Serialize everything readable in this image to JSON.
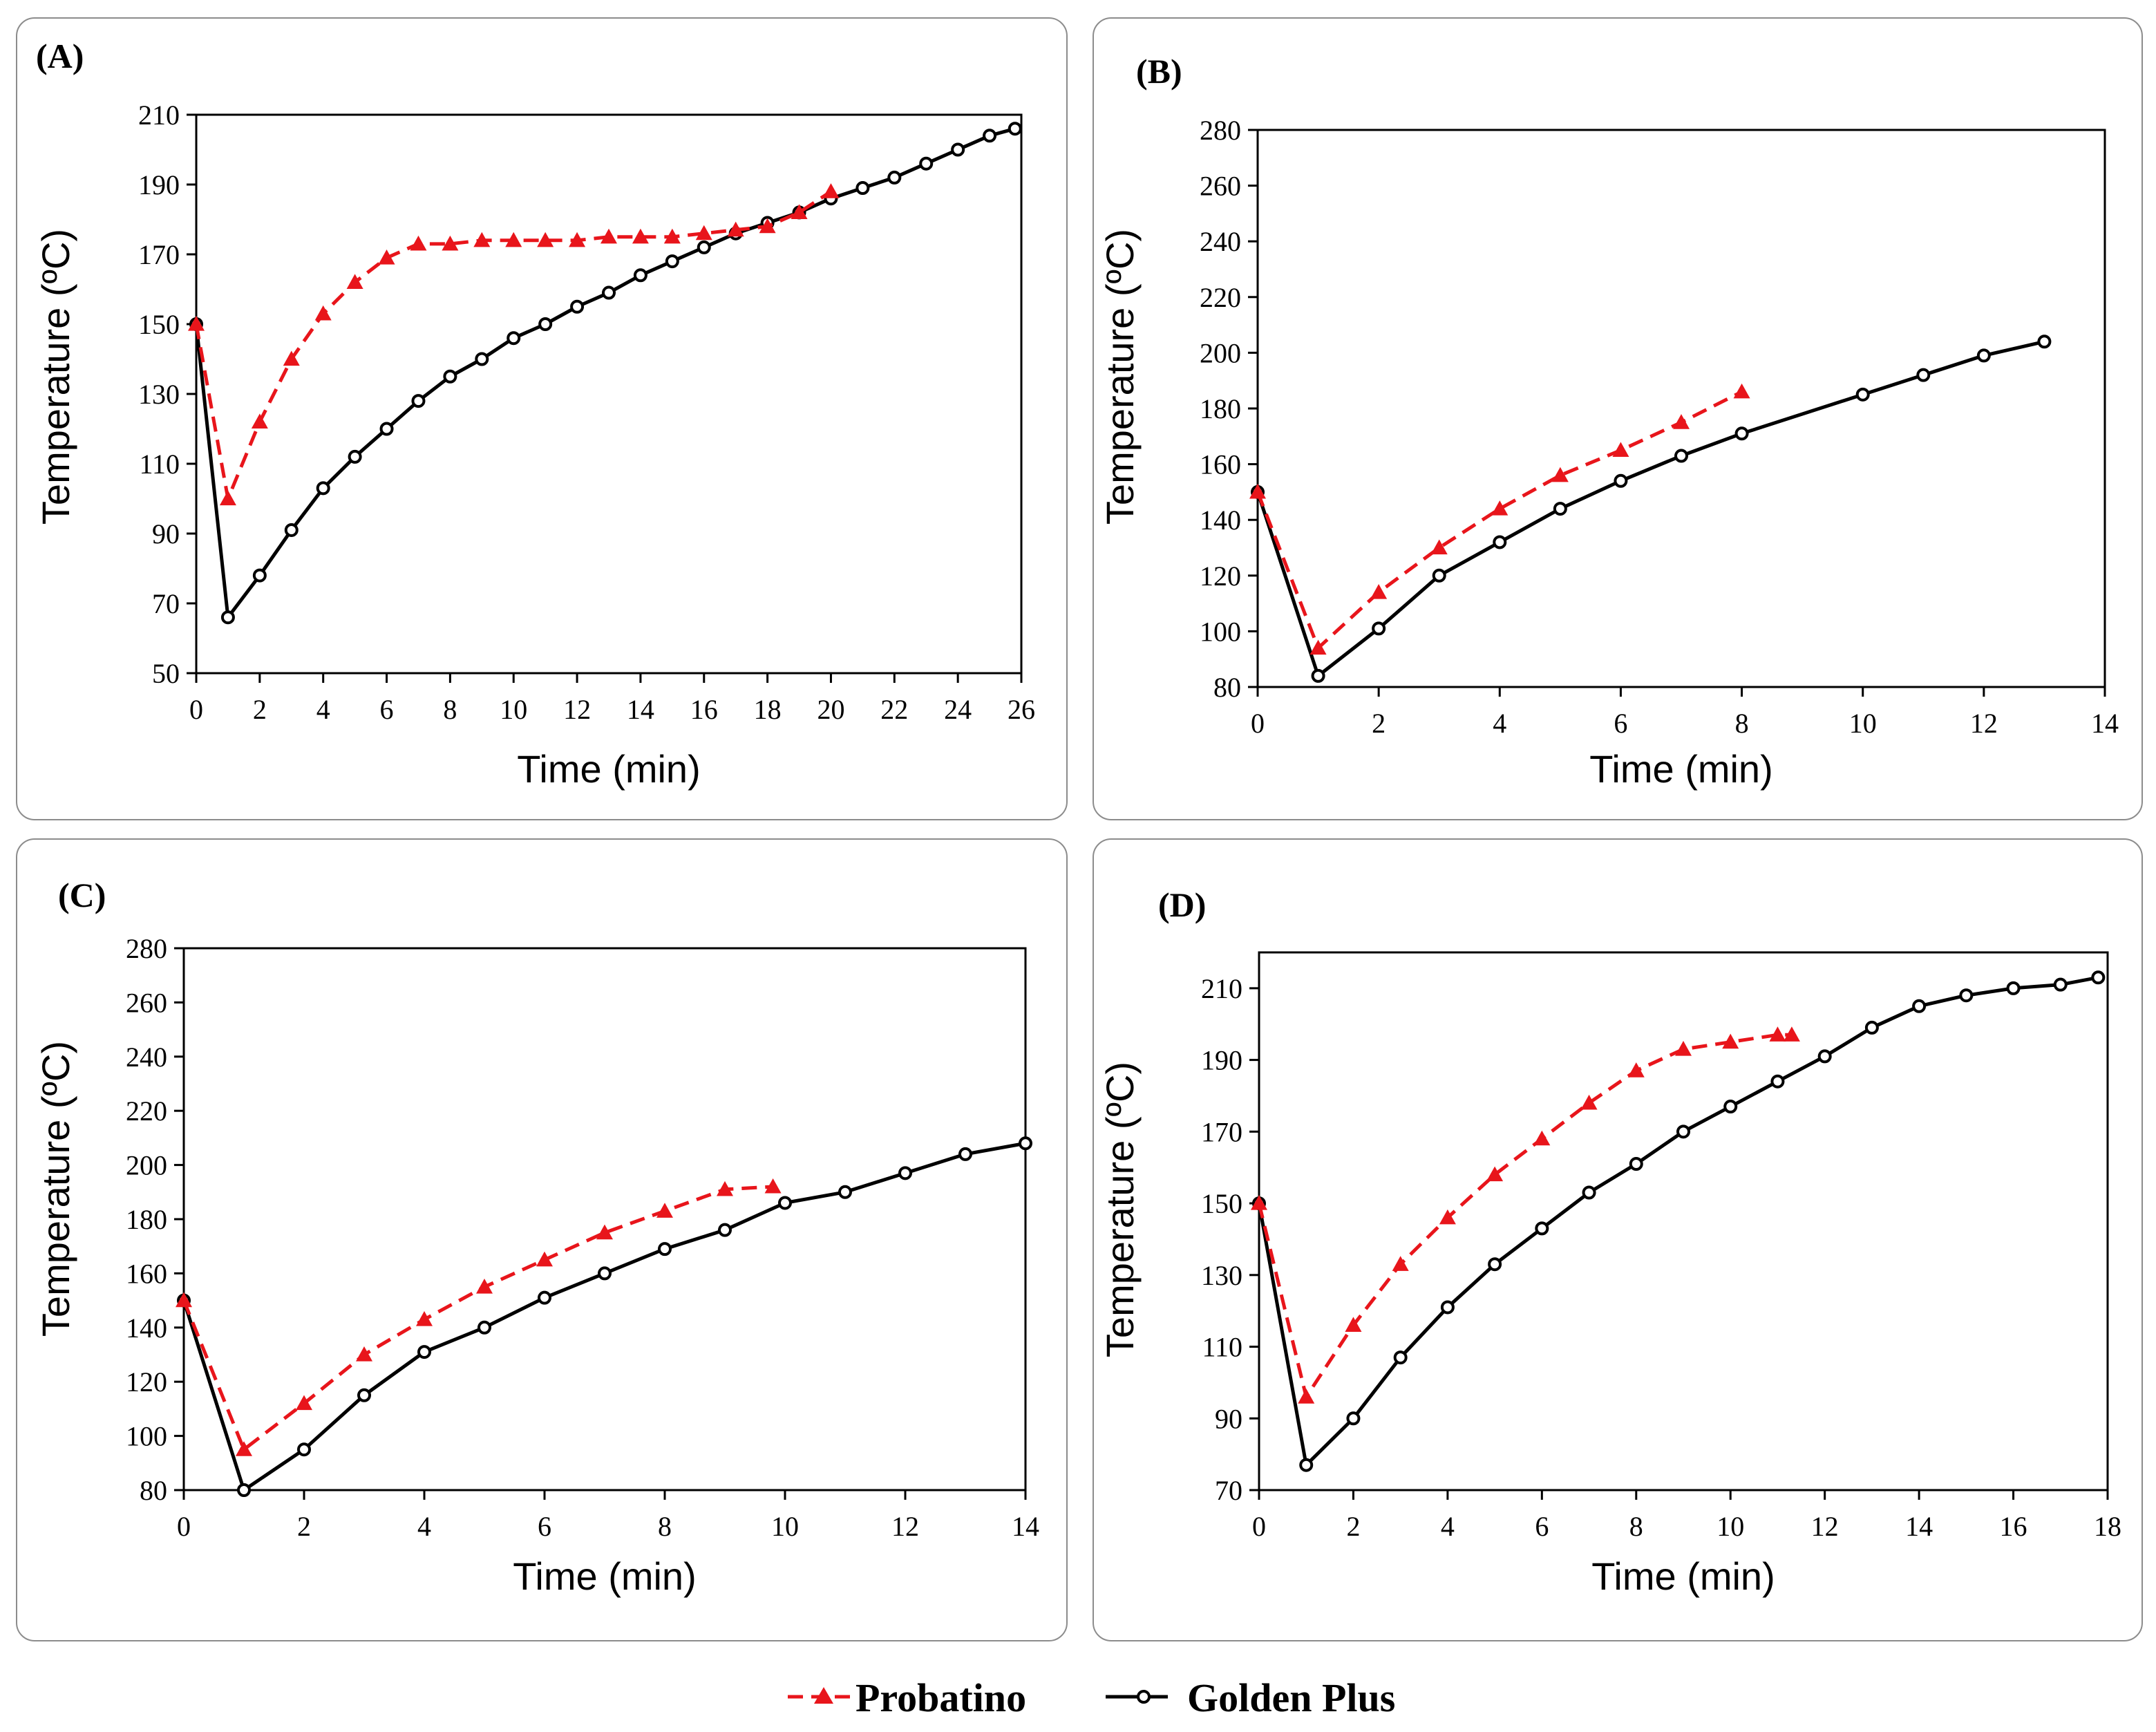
{
  "legend": [
    {
      "name": "Probatino",
      "color": "#e8151b",
      "marker": "triangle",
      "dash": true
    },
    {
      "name": "Golden Plus",
      "color": "#000000",
      "marker": "circle",
      "dash": false
    }
  ],
  "chart_data": [
    {
      "panel": "(A)",
      "type": "line",
      "xlabel": "Time (min)",
      "ylabel": "Temperature (ºC)",
      "xlim": [
        0,
        26
      ],
      "ylim": [
        50,
        210
      ],
      "xticks": [
        0,
        2,
        4,
        6,
        8,
        10,
        12,
        14,
        16,
        18,
        20,
        22,
        24,
        26
      ],
      "yticks": [
        50,
        70,
        90,
        110,
        130,
        150,
        170,
        190,
        210
      ],
      "series": [
        {
          "name": "Probatino",
          "x": [
            0,
            1,
            2,
            3,
            4,
            5,
            6,
            7,
            8,
            9,
            10,
            11,
            12,
            13,
            14,
            15,
            16,
            17,
            18,
            19,
            20
          ],
          "y": [
            150,
            100,
            122,
            140,
            153,
            162,
            169,
            173,
            173,
            174,
            174,
            174,
            174,
            175,
            175,
            175,
            176,
            177,
            178,
            182,
            188
          ]
        },
        {
          "name": "Golden Plus",
          "x": [
            0,
            1,
            2,
            3,
            4,
            5,
            6,
            7,
            8,
            9,
            10,
            11,
            12,
            13,
            14,
            15,
            16,
            17,
            18,
            19,
            20,
            21,
            22,
            23,
            24,
            25,
            25.8
          ],
          "y": [
            150,
            66,
            78,
            91,
            103,
            112,
            120,
            128,
            135,
            140,
            146,
            150,
            155,
            159,
            164,
            168,
            172,
            176,
            179,
            182,
            186,
            189,
            192,
            196,
            200,
            204,
            206
          ]
        }
      ]
    },
    {
      "panel": "(B)",
      "type": "line",
      "xlabel": "Time (min)",
      "ylabel": "Temperature (ºC)",
      "xlim": [
        0,
        14
      ],
      "ylim": [
        80,
        280
      ],
      "xticks": [
        0,
        2,
        4,
        6,
        8,
        10,
        12,
        14
      ],
      "yticks": [
        80,
        100,
        120,
        140,
        160,
        180,
        200,
        220,
        240,
        260,
        280
      ],
      "series": [
        {
          "name": "Probatino",
          "x": [
            0,
            1,
            2,
            3,
            4,
            5,
            6,
            7,
            8
          ],
          "y": [
            150,
            94,
            114,
            130,
            144,
            156,
            165,
            175,
            186
          ]
        },
        {
          "name": "Golden Plus",
          "x": [
            0,
            1,
            2,
            3,
            4,
            5,
            6,
            7,
            8,
            10,
            11,
            12,
            13
          ],
          "y": [
            150,
            84,
            101,
            120,
            132,
            144,
            154,
            163,
            171,
            185,
            192,
            199,
            204
          ]
        }
      ]
    },
    {
      "panel": "(C)",
      "type": "line",
      "xlabel": "Time (min)",
      "ylabel": "Temperature (ºC)",
      "xlim": [
        0,
        14
      ],
      "ylim": [
        80,
        280
      ],
      "xticks": [
        0,
        2,
        4,
        6,
        8,
        10,
        12,
        14
      ],
      "yticks": [
        80,
        100,
        120,
        140,
        160,
        180,
        200,
        220,
        240,
        260,
        280
      ],
      "series": [
        {
          "name": "Probatino",
          "x": [
            0,
            1,
            2,
            3,
            4,
            5,
            6,
            7,
            8,
            9,
            9.8
          ],
          "y": [
            150,
            95,
            112,
            130,
            143,
            155,
            165,
            175,
            183,
            191,
            192
          ]
        },
        {
          "name": "Golden Plus",
          "x": [
            0,
            1,
            2,
            3,
            4,
            5,
            6,
            7,
            8,
            9,
            10,
            11,
            12,
            13,
            14
          ],
          "y": [
            150,
            80,
            95,
            115,
            131,
            140,
            151,
            160,
            169,
            176,
            186,
            190,
            197,
            204,
            208
          ]
        }
      ]
    },
    {
      "panel": "(D)",
      "type": "line",
      "xlabel": "Time (min)",
      "ylabel": "Temperature (ºC)",
      "xlim": [
        0,
        18
      ],
      "ylim": [
        70,
        220
      ],
      "xticks": [
        0,
        2,
        4,
        6,
        8,
        10,
        12,
        14,
        16,
        18
      ],
      "yticks": [
        70,
        90,
        110,
        130,
        150,
        170,
        190,
        210
      ],
      "series": [
        {
          "name": "Probatino",
          "x": [
            0,
            1,
            2,
            3,
            4,
            5,
            6,
            7,
            8,
            9,
            10,
            11,
            11.3
          ],
          "y": [
            150,
            96,
            116,
            133,
            146,
            158,
            168,
            178,
            187,
            193,
            195,
            197,
            197
          ]
        },
        {
          "name": "Golden Plus",
          "x": [
            0,
            1,
            2,
            3,
            4,
            5,
            6,
            7,
            8,
            9,
            10,
            11,
            12,
            13,
            14,
            15,
            16,
            17,
            17.8
          ],
          "y": [
            150,
            77,
            90,
            107,
            121,
            133,
            143,
            153,
            161,
            170,
            177,
            184,
            191,
            199,
            205,
            208,
            210,
            211,
            213
          ]
        }
      ]
    }
  ]
}
